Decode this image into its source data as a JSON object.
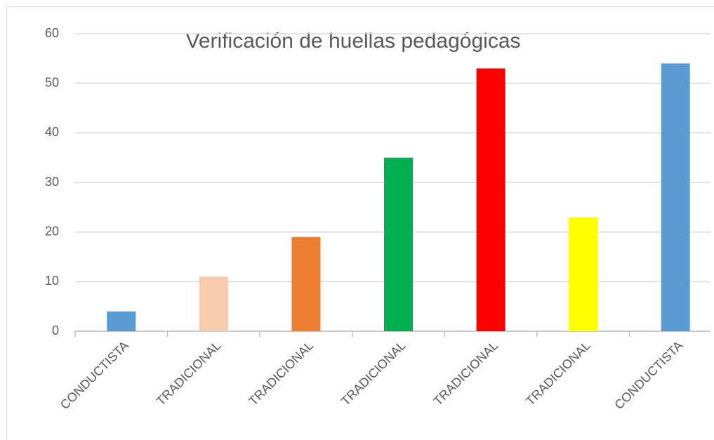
{
  "chart_data": {
    "type": "bar",
    "title": "Verificación de huellas pedagógicas",
    "categories": [
      "CONDUCTISTA",
      "TRADICIONAL",
      "TRADICIONAL",
      "TRADICIONAL",
      "TRADICIONAL",
      "TRADICIONAL",
      "CONDUCTISTA"
    ],
    "values": [
      4,
      11,
      19,
      35,
      53,
      23,
      54
    ],
    "colors": [
      "#5b9bd5",
      "#f8cbad",
      "#ed7d31",
      "#00b050",
      "#ff0000",
      "#ffff00",
      "#5b9bd5"
    ],
    "ylim": [
      0,
      60
    ],
    "yticks": [
      0,
      10,
      20,
      30,
      40,
      50,
      60
    ],
    "grid": true
  }
}
